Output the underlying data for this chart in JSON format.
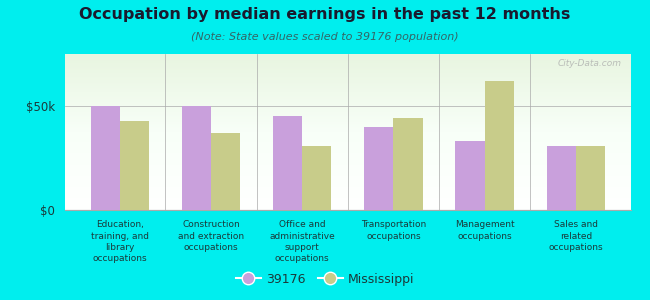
{
  "title": "Occupation by median earnings in the past 12 months",
  "subtitle": "(Note: State values scaled to 39176 population)",
  "categories": [
    "Education,\ntraining, and\nlibrary\noccupations",
    "Construction\nand extraction\noccupations",
    "Office and\nadministrative\nsupport\noccupations",
    "Transportation\noccupations",
    "Management\noccupations",
    "Sales and\nrelated\noccupations"
  ],
  "values_39176": [
    50000,
    50000,
    45000,
    40000,
    33000,
    31000
  ],
  "values_mississippi": [
    43000,
    37000,
    31000,
    44000,
    62000,
    31000
  ],
  "bar_color_39176": "#c9a0dc",
  "bar_color_mississippi": "#c8cc8a",
  "background_color": "#00eeee",
  "ylabel_ticks": [
    "$0",
    "$50k"
  ],
  "ytick_values": [
    0,
    50000
  ],
  "ylim": [
    0,
    75000
  ],
  "legend_label_1": "39176",
  "legend_label_2": "Mississippi",
  "watermark": "City-Data.com",
  "title_color": "#1a1a2e",
  "subtitle_color": "#336666",
  "label_color": "#1a3a3a"
}
